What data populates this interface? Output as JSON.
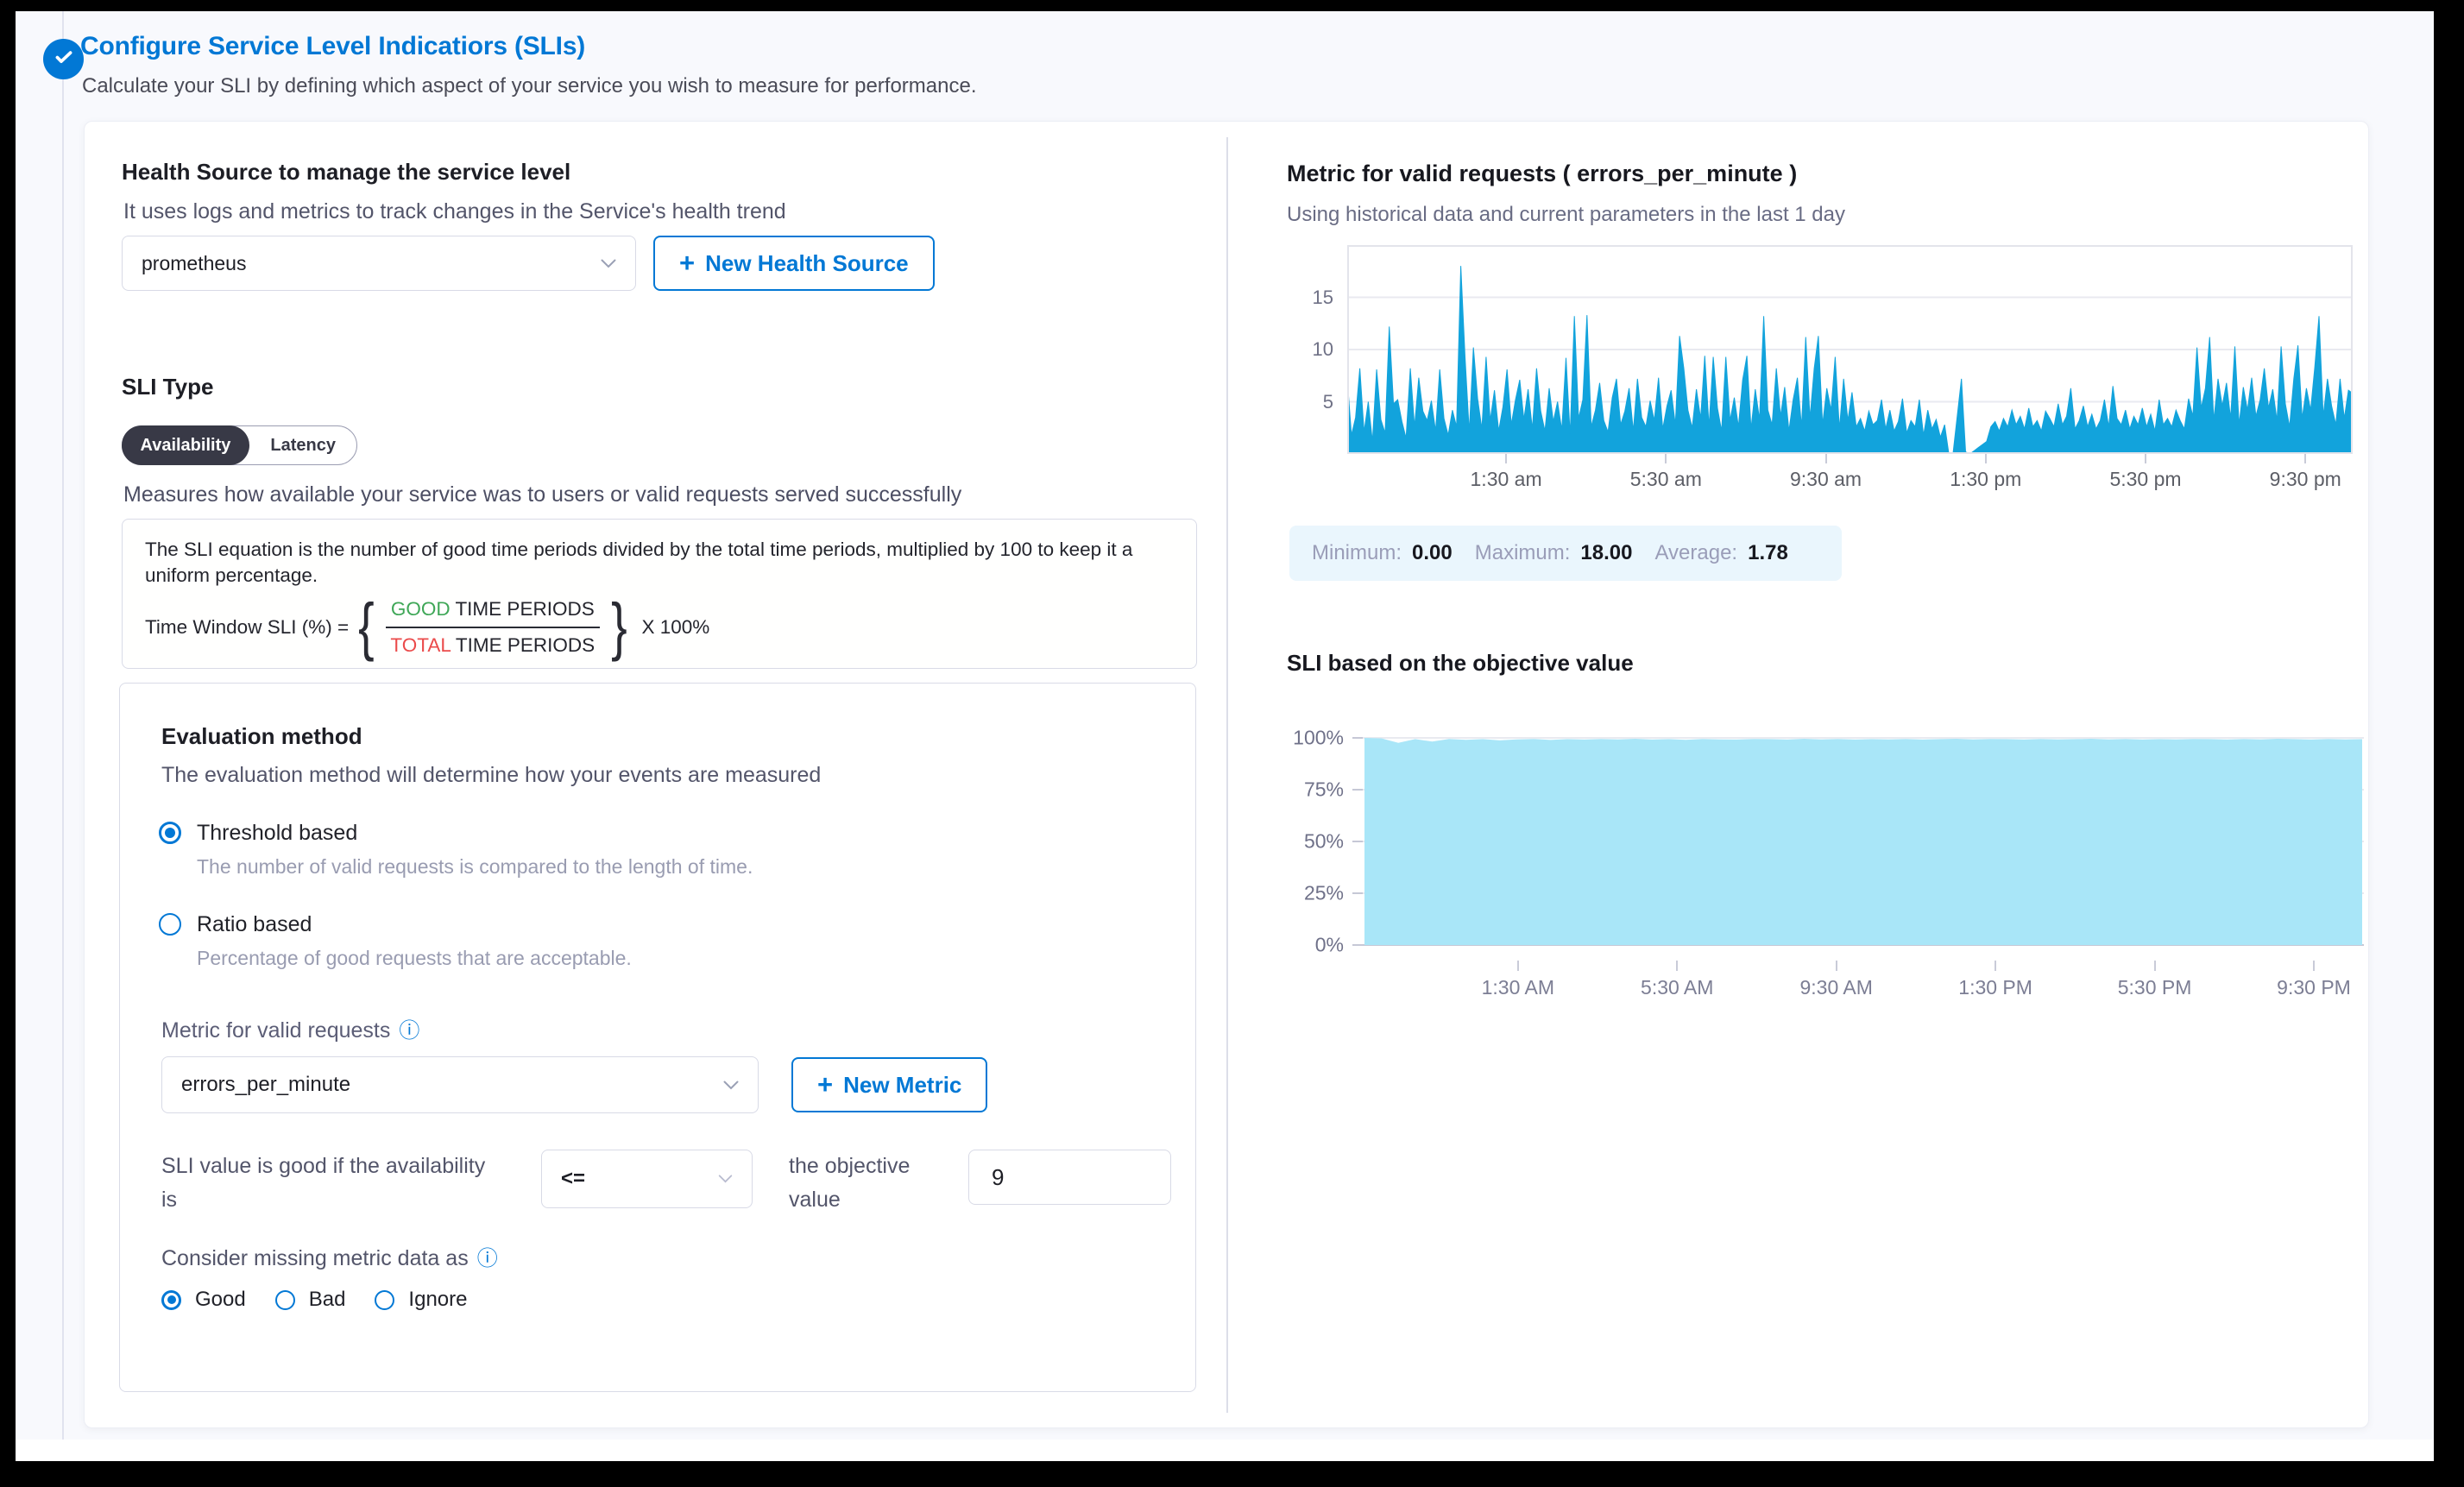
{
  "icons": {
    "plus": "+",
    "info": "ⓘ"
  },
  "header": {
    "title": "Configure Service Level Indicatiors (SLIs)",
    "subtitle": "Calculate your SLI by defining which aspect of your service you wish to measure for performance.",
    "accent_color": "#0278d5"
  },
  "left": {
    "health_source": {
      "heading": "Health Source to manage the service level",
      "description": "It uses logs and metrics to track changes in the Service's health trend",
      "dropdown_value": "prometheus",
      "new_button_label": "New Health Source"
    },
    "sli_type": {
      "heading": "SLI Type",
      "options": [
        {
          "label": "Availability",
          "selected": true
        },
        {
          "label": "Latency",
          "selected": false
        }
      ],
      "description": "Measures how available your service was to users or valid requests served successfully"
    },
    "equation": {
      "text": "The SLI equation is the number of good time periods divided by the total time periods, multiplied by 100 to keep it a uniform percentage.",
      "lhs": "Time Window SLI (%) =",
      "brace_left": "{",
      "brace_right": "}",
      "numerator_highlight": "GOOD",
      "numerator_rest": " TIME PERIODS",
      "denominator_highlight": "TOTAL",
      "denominator_rest": " TIME PERIODS",
      "rhs": "X 100%",
      "good_color": "#3fa757",
      "total_color": "#eb4b4b"
    },
    "evaluation": {
      "heading": "Evaluation method",
      "subtitle": "The evaluation method will determine how your events are measured",
      "methods": [
        {
          "label": "Threshold based",
          "description": "The number of valid requests is compared to the length of time.",
          "selected": true
        },
        {
          "label": "Ratio based",
          "description": "Percentage of good requests that are acceptable.",
          "selected": false
        }
      ],
      "metric_label": "Metric for valid requests",
      "metric_value": "errors_per_minute",
      "new_metric_label": "New Metric",
      "objective": {
        "prefix": "SLI value is good if the availability is",
        "operator": "<=",
        "middle": "the objective value",
        "value": "9"
      },
      "missing_label": "Consider missing metric data as",
      "missing_options": [
        {
          "label": "Good",
          "selected": true
        },
        {
          "label": "Bad",
          "selected": false
        },
        {
          "label": "Ignore",
          "selected": false
        }
      ]
    }
  },
  "right": {
    "metric_chart": {
      "title": "Metric for valid requests ( errors_per_minute )",
      "subtitle": "Using historical data and current parameters in the last 1 day"
    },
    "stats": {
      "min_label": "Minimum:",
      "min": "0.00",
      "max_label": "Maximum:",
      "max": "18.00",
      "avg_label": "Average:",
      "avg": "1.78"
    },
    "sli_chart": {
      "title": "SLI based on the objective value"
    }
  },
  "chart_data": [
    {
      "type": "area",
      "title": "Metric for valid requests ( errors_per_minute )",
      "color": "#12a3dc",
      "ylim": [
        0,
        20
      ],
      "y_ticks": [
        5,
        10,
        15
      ],
      "x_ticks": [
        "1:30 am",
        "5:30 am",
        "9:30 am",
        "1:30 pm",
        "5:30 pm",
        "9:30 pm"
      ],
      "stats": {
        "minimum": 0.0,
        "maximum": 18.0,
        "average": 1.78
      },
      "values": [
        7.2,
        1.8,
        3.5,
        8.2,
        2.1,
        5.0,
        1.2,
        8.1,
        3.3,
        2.0,
        12.2,
        4.8,
        5.2,
        3.1,
        1.5,
        8.2,
        2.6,
        7.3,
        4.1,
        3.2,
        5.1,
        2.2,
        8.1,
        3.4,
        1.8,
        4.2,
        2.6,
        18.0,
        9.3,
        2.1,
        10.2,
        5.3,
        2.4,
        9.3,
        3.2,
        6.1,
        2.2,
        4.5,
        8.1,
        2.8,
        5.2,
        7.1,
        3.3,
        6.2,
        2.4,
        8.2,
        4.1,
        2.2,
        6.3,
        3.1,
        5.0,
        2.3,
        9.2,
        1.8,
        13.2,
        3.4,
        5.2,
        13.3,
        2.6,
        4.2,
        6.8,
        3.2,
        2.1,
        5.4,
        7.2,
        2.8,
        4.1,
        6.3,
        2.2,
        7.2,
        3.5,
        2.6,
        5.1,
        3.2,
        7.3,
        2.4,
        4.6,
        6.1,
        2.8,
        11.3,
        8.2,
        4.2,
        2.5,
        6.2,
        3.4,
        9.4,
        2.6,
        9.3,
        4.4,
        2.2,
        9.3,
        3.2,
        5.4,
        2.6,
        7.1,
        9.4,
        2.4,
        6.2,
        3.3,
        13.2,
        4.2,
        2.8,
        8.2,
        3.6,
        6.4,
        2.2,
        5.2,
        7.3,
        2.6,
        11.2,
        3.4,
        8.2,
        11.3,
        2.8,
        6.3,
        4.2,
        9.3,
        2.4,
        7.2,
        3.2,
        5.9,
        2.6,
        3.4,
        2.2,
        4.1,
        2.8,
        3.2,
        5.2,
        2.4,
        4.2,
        2.2,
        3.1,
        5.3,
        2.0,
        3.2,
        2.6,
        5.2,
        1.8,
        4.2,
        2.4,
        3.3,
        1.6,
        2.8,
        0.0,
        0.0,
        3.6,
        7.2,
        0.2,
        0.0,
        0.3,
        0.6,
        0.9,
        1.2,
        2.6,
        3.1,
        2.2,
        3.4,
        2.6,
        4.2,
        2.8,
        3.6,
        2.4,
        4.4,
        2.6,
        3.2,
        2.2,
        4.1,
        3.4,
        2.6,
        4.8,
        2.8,
        3.6,
        6.3,
        2.4,
        3.2,
        4.6,
        2.6,
        3.8,
        2.4,
        3.2,
        5.2,
        2.6,
        6.5,
        3.4,
        2.8,
        4.2,
        2.4,
        3.6,
        2.8,
        4.4,
        2.6,
        3.8,
        2.2,
        5.2,
        2.8,
        3.4,
        2.6,
        4.2,
        3.2,
        2.4,
        5.3,
        3.6,
        10.2,
        4.4,
        6.3,
        11.2,
        3.2,
        7.2,
        4.6,
        6.8,
        3.4,
        10.3,
        2.8,
        6.4,
        4.2,
        7.3,
        3.6,
        5.2,
        8.2,
        4.4,
        6.2,
        3.2,
        10.3,
        4.8,
        2.6,
        7.2,
        10.4,
        3.4,
        6.3,
        4.2,
        8.3,
        13.2,
        3.6,
        7.2,
        4.6,
        2.8,
        7.2,
        3.4,
        6.1,
        5.8
      ]
    },
    {
      "type": "area",
      "title": "SLI based on the objective value",
      "color": "#a9e6f8",
      "ylim": [
        0,
        100
      ],
      "y_ticks_pct": [
        0,
        25,
        50,
        75,
        100
      ],
      "y_tick_labels": [
        "0%",
        "25%",
        "50%",
        "75%",
        "100%"
      ],
      "x_ticks": [
        "1:30 AM",
        "5:30 AM",
        "9:30 AM",
        "1:30 PM",
        "5:30 PM",
        "9:30 PM"
      ],
      "values": [
        100,
        99.8,
        97.6,
        99.4,
        98.2,
        99.5,
        99.1,
        99.4,
        98.8,
        99.3,
        99.5,
        99.0,
        99.4,
        99.2,
        99.5,
        99.3,
        99.6,
        99.2,
        99.4,
        99.1,
        99.5,
        99.3,
        99.2,
        99.5,
        99.4,
        99.2,
        99.6,
        99.3,
        99.5,
        99.2,
        99.4,
        99.3,
        99.5,
        99.2,
        99.4,
        99.6,
        99.3,
        99.5,
        99.4,
        99.2,
        99.5,
        99.3,
        99.4,
        99.6,
        99.3,
        99.5,
        99.2,
        99.4,
        99.3,
        99.5,
        99.4,
        99.2,
        99.5,
        99.3,
        99.6,
        99.4,
        99.2,
        99.5,
        99.3,
        99.4
      ]
    }
  ]
}
